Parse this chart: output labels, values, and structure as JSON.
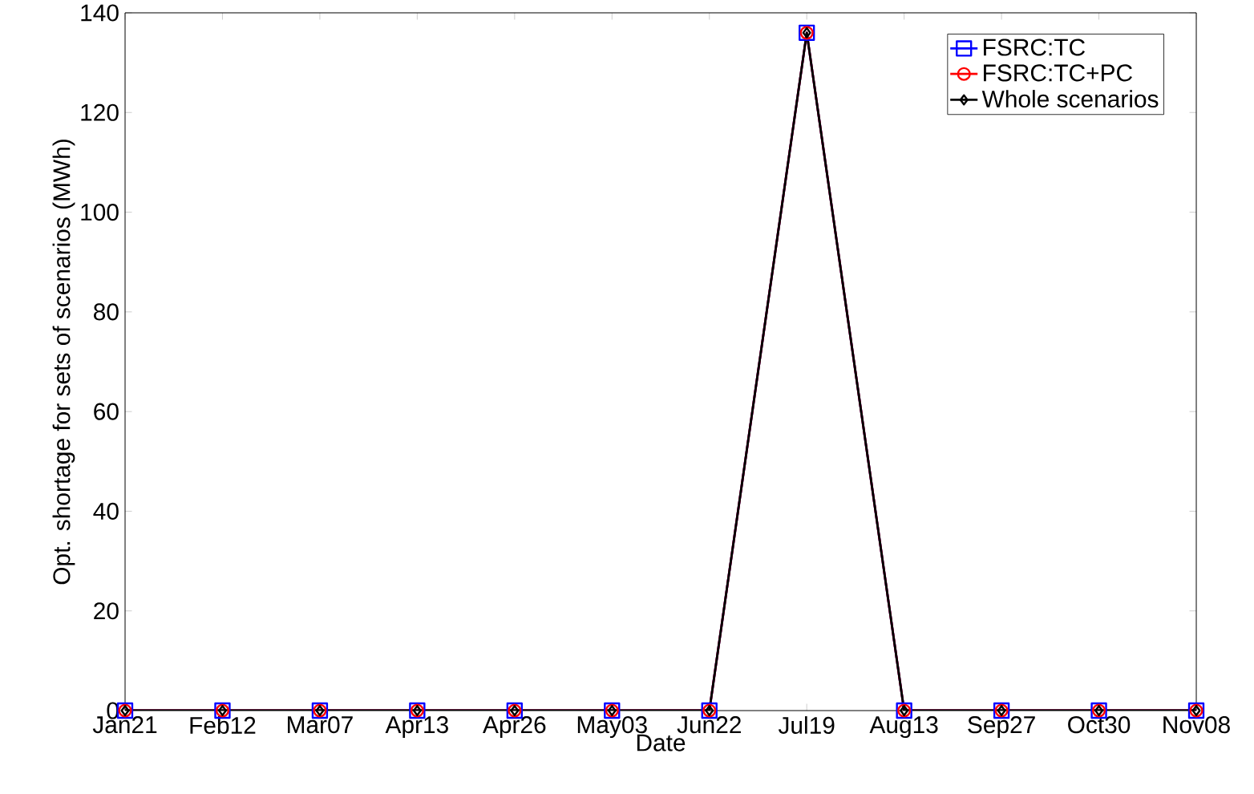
{
  "chart_data": {
    "type": "line",
    "xlabel": "Date",
    "ylabel": "Opt. shortage for sets of scenarios (MWh)",
    "categories": [
      "Jan21",
      "Feb12",
      "Mar07",
      "Apr13",
      "Apr26",
      "May03",
      "Jun22",
      "Jul19",
      "Aug13",
      "Sep27",
      "Oct30",
      "Nov08"
    ],
    "series": [
      {
        "name": "FSRC:TC",
        "color": "#0000ff",
        "marker": "square",
        "values": [
          0,
          0,
          0,
          0,
          0,
          0,
          0,
          136,
          0,
          0,
          0,
          0
        ]
      },
      {
        "name": "FSRC:TC+PC",
        "color": "#ff0000",
        "marker": "circle",
        "values": [
          0,
          0,
          0,
          0,
          0,
          0,
          0,
          136,
          0,
          0,
          0,
          0
        ]
      },
      {
        "name": "Whole scenarios",
        "color": "#000000",
        "marker": "diamond",
        "values": [
          0,
          0,
          0,
          0,
          0,
          0,
          0,
          136,
          0,
          0,
          0,
          0
        ]
      }
    ],
    "ylim": [
      0,
      140
    ],
    "yticks": [
      0,
      20,
      40,
      60,
      80,
      100,
      120,
      140
    ],
    "grid": false,
    "legend": "top right",
    "line_style": "solid"
  }
}
